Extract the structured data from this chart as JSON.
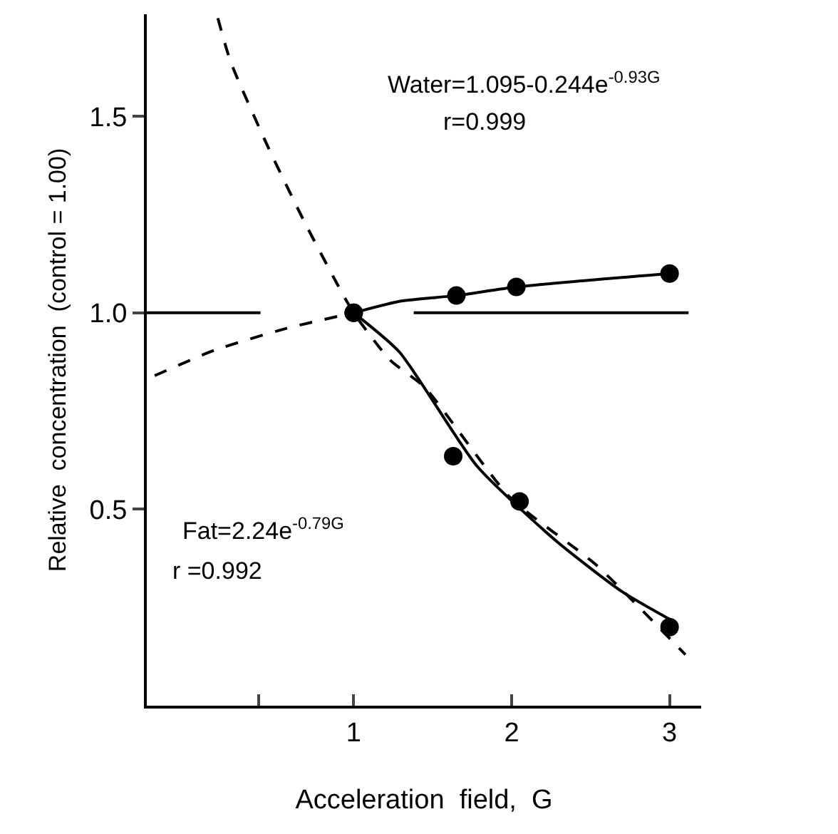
{
  "chart_data": {
    "type": "scatter",
    "xlabel": "Acceleration  field,  G",
    "ylabel": "Relative  concentration  (control = 1.00)",
    "annotations": [
      "Water=1.095-0.244e$^{-0.93G}$",
      "r=0.999",
      "Fat=2.24e$^{-0.79G}$",
      "r =0.992"
    ],
    "xlim": [
      -0.31,
      3.2
    ],
    "xticks": [
      {
        "value": 0.4,
        "label": null
      },
      1,
      2,
      3
    ],
    "ylim": [
      0,
      1.76
    ],
    "yticks": [
      {
        "value": 0.5,
        "label": "0.5"
      },
      {
        "value": 1,
        "label": "1.0"
      },
      {
        "value": 1.5,
        "label": "1.5"
      }
    ],
    "grid": false,
    "series": [
      {
        "marker": "circle",
        "color": "#000000",
        "x": [
          1,
          1.65,
          2.03,
          3
        ],
        "values": [
          1,
          1.044,
          1.066,
          1.1
        ]
      },
      {
        "marker": "circle",
        "color": "#000000",
        "x": [
          1,
          1.63,
          2.05,
          3
        ],
        "values": [
          1,
          0.635,
          0.52,
          0.2
        ]
      },
      {
        "type": "line",
        "marker": "none",
        "color": "#000000",
        "line_style": "solid",
        "x": [
          1,
          1.3,
          1.65,
          2.03,
          3
        ],
        "values": [
          1,
          1.03,
          1.044,
          1.066,
          1.1
        ]
      },
      {
        "type": "line",
        "marker": "none",
        "color": "#000000",
        "line_style": "dashed",
        "x": [
          -0.26,
          0.12,
          0.57,
          1
        ],
        "values": [
          0.84,
          0.905,
          0.96,
          1
        ]
      },
      {
        "type": "line",
        "marker": "none",
        "color": "#000000",
        "line_style": "solid",
        "x": [
          1,
          1.29,
          1.78,
          2.28,
          2.7,
          3
        ],
        "values": [
          1,
          0.9,
          0.61,
          0.42,
          0.29,
          0.22
        ]
      },
      {
        "type": "line",
        "marker": "none",
        "color": "#000000",
        "line_style": "dashed",
        "x": [
          0.14,
          0.22,
          0.46,
          0.69,
          0.9,
          1,
          1.23,
          1.45,
          1.99,
          2.53,
          3.1
        ],
        "values": [
          1.75,
          1.64,
          1.42,
          1.23,
          1.07,
          1,
          0.88,
          0.81,
          0.53,
          0.36,
          0.13
        ]
      },
      {
        "type": "line",
        "marker": "none",
        "color": "#000000",
        "line_style": "solid",
        "x": [
          -0.31,
          0.41,
          0.42,
          1.38,
          3.12
        ],
        "values": [
          1,
          1,
          null,
          1,
          1
        ]
      }
    ]
  }
}
